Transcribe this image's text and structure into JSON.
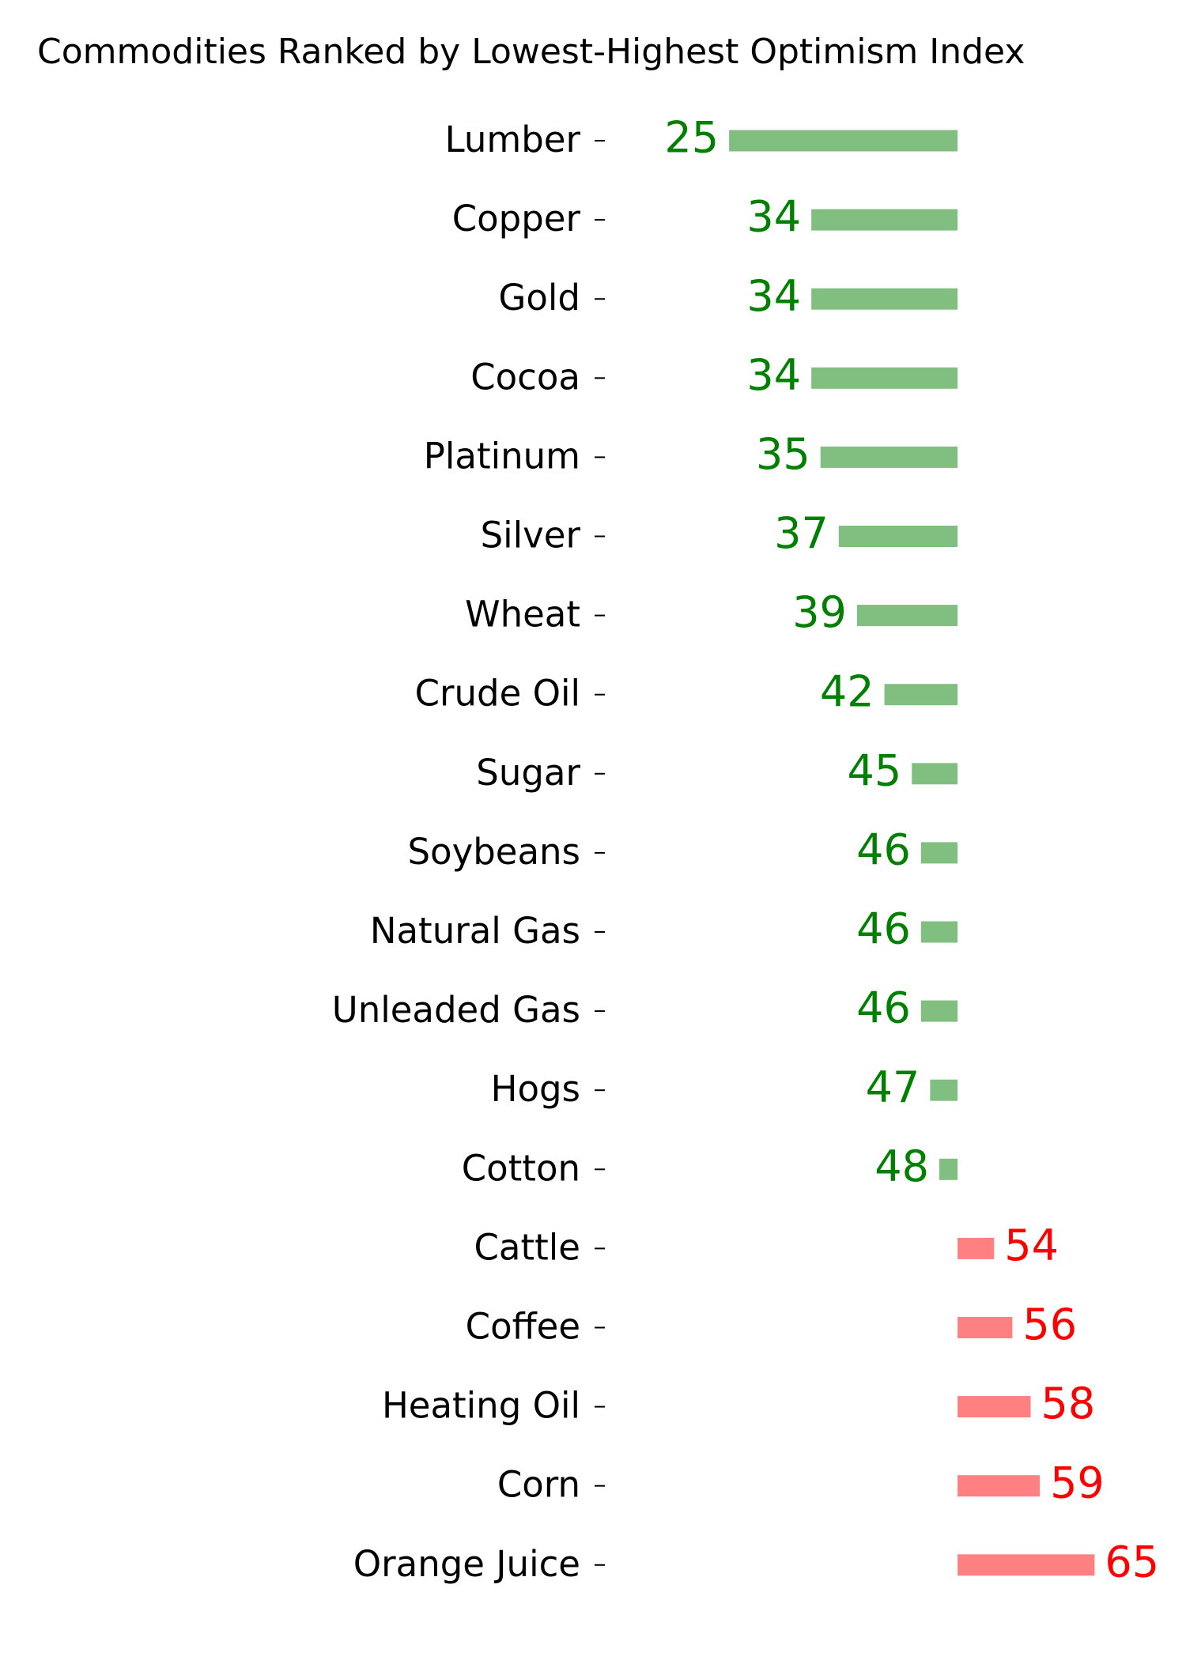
{
  "chart_data": {
    "type": "diverging-bar",
    "title": "Commodities Ranked by Lowest-Highest Optimism Index",
    "categories": [
      "Lumber",
      "Copper",
      "Gold",
      "Cocoa",
      "Platinum",
      "Silver",
      "Wheat",
      "Crude Oil",
      "Sugar",
      "Soybeans",
      "Natural Gas",
      "Unleaded Gas",
      "Hogs",
      "Cotton",
      "Cattle",
      "Coffee",
      "Heating Oil",
      "Corn",
      "Orange Juice"
    ],
    "values": [
      25,
      34,
      34,
      34,
      35,
      37,
      39,
      42,
      45,
      46,
      46,
      46,
      47,
      48,
      54,
      56,
      58,
      59,
      65
    ],
    "baseline": 50,
    "xlim": [
      14,
      75
    ],
    "below_color": "#80bf80",
    "above_color": "#ff8080",
    "below_label_color": "#008000",
    "above_label_color": "#ff0000"
  }
}
